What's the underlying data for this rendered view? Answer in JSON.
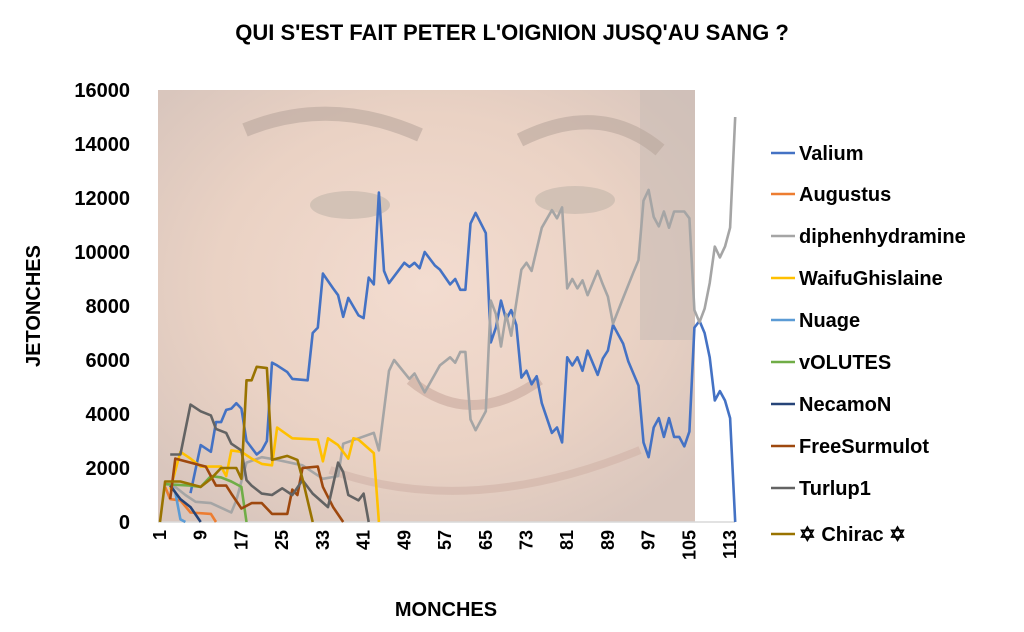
{
  "chart_data": {
    "type": "line",
    "title": "QUI S'EST FAIT PETER L'OIGNION JUSQ'AU SANG ?",
    "xlabel": "MONCHES",
    "ylabel": "JETONCHES",
    "ylim": [
      0,
      16000
    ],
    "xlim": [
      1,
      113
    ],
    "yticks": [
      "0",
      "2000",
      "4000",
      "6000",
      "8000",
      "10000",
      "12000",
      "14000",
      "16000"
    ],
    "xticks": [
      "1",
      "9",
      "17",
      "25",
      "33",
      "41",
      "49",
      "57",
      "65",
      "73",
      "81",
      "89",
      "97",
      "105",
      "113"
    ],
    "legend_placement": "right",
    "grid": false,
    "series": [
      {
        "name": "Valium",
        "color": "#4472C4",
        "points": [
          [
            7,
            1070
          ],
          [
            9,
            2850
          ],
          [
            11,
            2600
          ],
          [
            12,
            3700
          ],
          [
            13,
            3700
          ],
          [
            14,
            4150
          ],
          [
            15,
            4200
          ],
          [
            16,
            4400
          ],
          [
            17,
            4200
          ],
          [
            18,
            3000
          ],
          [
            20,
            2500
          ],
          [
            21,
            2650
          ],
          [
            22,
            3000
          ],
          [
            23,
            5900
          ],
          [
            24,
            5800
          ],
          [
            26,
            5550
          ],
          [
            27,
            5300
          ],
          [
            30,
            5250
          ],
          [
            31,
            7000
          ],
          [
            32,
            7200
          ],
          [
            33,
            9200
          ],
          [
            35,
            8650
          ],
          [
            36,
            8400
          ],
          [
            37,
            7600
          ],
          [
            38,
            8300
          ],
          [
            40,
            7650
          ],
          [
            41,
            7550
          ],
          [
            42,
            9050
          ],
          [
            43,
            8800
          ],
          [
            44,
            12200
          ],
          [
            45,
            9300
          ],
          [
            46,
            8850
          ],
          [
            49,
            9600
          ],
          [
            50,
            9450
          ],
          [
            51,
            9600
          ],
          [
            52,
            9400
          ],
          [
            53,
            10000
          ],
          [
            55,
            9500
          ],
          [
            56,
            9350
          ],
          [
            58,
            8800
          ],
          [
            59,
            9000
          ],
          [
            60,
            8600
          ],
          [
            61,
            8600
          ],
          [
            62,
            11050
          ],
          [
            63,
            11450
          ],
          [
            65,
            10700
          ],
          [
            66,
            6650
          ],
          [
            67,
            7200
          ],
          [
            68,
            8200
          ],
          [
            69,
            7500
          ],
          [
            70,
            7850
          ],
          [
            71,
            7300
          ],
          [
            72,
            5350
          ],
          [
            73,
            5600
          ],
          [
            74,
            5100
          ],
          [
            75,
            5400
          ],
          [
            76,
            4400
          ],
          [
            78,
            3300
          ],
          [
            79,
            3500
          ],
          [
            80,
            2950
          ],
          [
            81,
            6100
          ],
          [
            82,
            5800
          ],
          [
            83,
            6100
          ],
          [
            84,
            5600
          ],
          [
            85,
            6350
          ],
          [
            87,
            5450
          ],
          [
            88,
            6050
          ],
          [
            89,
            6350
          ],
          [
            90,
            7300
          ],
          [
            92,
            6600
          ],
          [
            93,
            5950
          ],
          [
            95,
            5050
          ],
          [
            96,
            2950
          ],
          [
            97,
            2400
          ],
          [
            98,
            3500
          ],
          [
            99,
            3850
          ],
          [
            100,
            3150
          ],
          [
            101,
            3850
          ],
          [
            102,
            3150
          ],
          [
            103,
            3150
          ],
          [
            104,
            2800
          ],
          [
            105,
            3350
          ],
          [
            106,
            7200
          ],
          [
            107,
            7450
          ],
          [
            108,
            7000
          ],
          [
            109,
            6100
          ],
          [
            110,
            4500
          ],
          [
            111,
            4850
          ],
          [
            112,
            4500
          ],
          [
            113,
            3850
          ],
          [
            114,
            0
          ]
        ]
      },
      {
        "name": "Augustus",
        "color": "#ED7D31",
        "points": [
          [
            2,
            1300
          ],
          [
            3,
            850
          ],
          [
            5,
            800
          ],
          [
            7,
            350
          ],
          [
            11,
            300
          ],
          [
            12,
            0
          ]
        ]
      },
      {
        "name": "diphenhydramine",
        "color": "#A5A5A5",
        "points": [
          [
            3,
            1450
          ],
          [
            6,
            1000
          ],
          [
            8,
            750
          ],
          [
            11,
            700
          ],
          [
            15,
            350
          ],
          [
            16,
            800
          ],
          [
            18,
            2200
          ],
          [
            21,
            2400
          ],
          [
            24,
            2300
          ],
          [
            29,
            2100
          ],
          [
            33,
            1600
          ],
          [
            36,
            1700
          ],
          [
            37,
            2900
          ],
          [
            40,
            3100
          ],
          [
            43,
            3300
          ],
          [
            44,
            2650
          ],
          [
            46,
            5600
          ],
          [
            47,
            6000
          ],
          [
            50,
            5300
          ],
          [
            51,
            5500
          ],
          [
            53,
            4800
          ],
          [
            56,
            5800
          ],
          [
            58,
            6100
          ],
          [
            59,
            5900
          ],
          [
            60,
            6300
          ],
          [
            61,
            6300
          ],
          [
            62,
            3800
          ],
          [
            63,
            3400
          ],
          [
            65,
            4100
          ],
          [
            66,
            8200
          ],
          [
            67,
            7700
          ],
          [
            68,
            6500
          ],
          [
            69,
            7700
          ],
          [
            70,
            6900
          ],
          [
            72,
            9350
          ],
          [
            73,
            9600
          ],
          [
            74,
            9300
          ],
          [
            76,
            10900
          ],
          [
            78,
            11550
          ],
          [
            79,
            11250
          ],
          [
            80,
            11650
          ],
          [
            81,
            8650
          ],
          [
            82,
            9000
          ],
          [
            83,
            8650
          ],
          [
            84,
            8950
          ],
          [
            85,
            8400
          ],
          [
            87,
            9300
          ],
          [
            88,
            8800
          ],
          [
            89,
            8350
          ],
          [
            90,
            7350
          ],
          [
            92,
            8300
          ],
          [
            94,
            9250
          ],
          [
            95,
            9700
          ],
          [
            96,
            11900
          ],
          [
            97,
            12300
          ],
          [
            98,
            11300
          ],
          [
            99,
            10950
          ],
          [
            100,
            11500
          ],
          [
            101,
            10900
          ],
          [
            102,
            11500
          ],
          [
            103,
            11500
          ],
          [
            104,
            11500
          ],
          [
            105,
            11250
          ],
          [
            106,
            7850
          ],
          [
            107,
            7400
          ],
          [
            108,
            7900
          ],
          [
            109,
            8850
          ],
          [
            110,
            10200
          ],
          [
            111,
            9800
          ],
          [
            112,
            10200
          ],
          [
            113,
            10900
          ],
          [
            114,
            15000
          ]
        ]
      },
      {
        "name": "WaifuGhislaine",
        "color": "#FFC000",
        "points": [
          [
            3,
            1200
          ],
          [
            5,
            2600
          ],
          [
            7,
            2350
          ],
          [
            9,
            2050
          ],
          [
            13,
            2050
          ],
          [
            14,
            1700
          ],
          [
            15,
            2650
          ],
          [
            17,
            2600
          ],
          [
            19,
            2350
          ],
          [
            21,
            2150
          ],
          [
            23,
            2100
          ],
          [
            24,
            3500
          ],
          [
            27,
            3100
          ],
          [
            32,
            3050
          ],
          [
            33,
            2250
          ],
          [
            34,
            3100
          ],
          [
            36,
            2850
          ],
          [
            38,
            2350
          ],
          [
            39,
            3100
          ],
          [
            40,
            3050
          ],
          [
            43,
            2550
          ],
          [
            44,
            0
          ]
        ]
      },
      {
        "name": "Nuage",
        "color": "#5B9BD5",
        "points": [
          [
            3,
            1400
          ],
          [
            4,
            1100
          ],
          [
            5,
            100
          ],
          [
            6,
            0
          ]
        ]
      },
      {
        "name": "vOLUTES",
        "color": "#70AD47",
        "points": [
          [
            2,
            1400
          ],
          [
            7,
            1350
          ],
          [
            9,
            1300
          ],
          [
            11,
            1700
          ],
          [
            13,
            1650
          ],
          [
            15,
            1500
          ],
          [
            17,
            1300
          ],
          [
            18,
            0
          ]
        ]
      },
      {
        "name": "NecamoN",
        "color": "#264478",
        "points": [
          [
            3,
            1350
          ],
          [
            5,
            850
          ],
          [
            7,
            550
          ],
          [
            9,
            0
          ]
        ]
      },
      {
        "name": "FreeSurmulot",
        "color": "#9E480E",
        "points": [
          [
            3,
            850
          ],
          [
            4,
            2350
          ],
          [
            7,
            2200
          ],
          [
            10,
            2050
          ],
          [
            12,
            1350
          ],
          [
            14,
            1350
          ],
          [
            15,
            1050
          ],
          [
            17,
            500
          ],
          [
            19,
            700
          ],
          [
            21,
            700
          ],
          [
            23,
            300
          ],
          [
            26,
            300
          ],
          [
            27,
            1200
          ],
          [
            28,
            1000
          ],
          [
            29,
            2000
          ],
          [
            32,
            2050
          ],
          [
            33,
            1300
          ],
          [
            35,
            550
          ],
          [
            37,
            0
          ]
        ]
      },
      {
        "name": "Turlup1",
        "color": "#636363",
        "points": [
          [
            3,
            2500
          ],
          [
            5,
            2500
          ],
          [
            7,
            4350
          ],
          [
            9,
            4100
          ],
          [
            11,
            3950
          ],
          [
            12,
            3450
          ],
          [
            14,
            3300
          ],
          [
            15,
            2900
          ],
          [
            17,
            2650
          ],
          [
            18,
            1550
          ],
          [
            19,
            1350
          ],
          [
            21,
            1050
          ],
          [
            23,
            1000
          ],
          [
            25,
            1250
          ],
          [
            27,
            1000
          ],
          [
            29,
            1550
          ],
          [
            31,
            1050
          ],
          [
            34,
            550
          ],
          [
            36,
            2200
          ],
          [
            37,
            1850
          ],
          [
            38,
            1000
          ],
          [
            40,
            800
          ],
          [
            41,
            1050
          ],
          [
            42,
            0
          ]
        ]
      },
      {
        "name": "✡ Chirac ✡",
        "color": "#997300",
        "points": [
          [
            1,
            0
          ],
          [
            2,
            1500
          ],
          [
            5,
            1500
          ],
          [
            9,
            1300
          ],
          [
            11,
            1600
          ],
          [
            13,
            2000
          ],
          [
            16,
            2000
          ],
          [
            17,
            1600
          ],
          [
            18,
            5250
          ],
          [
            19,
            5250
          ],
          [
            20,
            5750
          ],
          [
            22,
            5700
          ],
          [
            23,
            2300
          ],
          [
            26,
            2450
          ],
          [
            28,
            2300
          ],
          [
            29,
            1600
          ],
          [
            31,
            0
          ]
        ]
      }
    ]
  }
}
